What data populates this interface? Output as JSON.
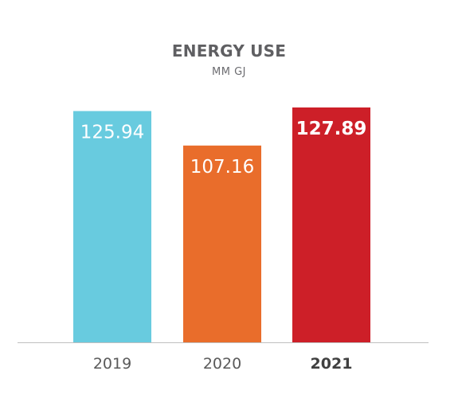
{
  "chart_data": {
    "type": "bar",
    "title": "ENERGY USE",
    "subtitle": "MM GJ",
    "xlabel": "",
    "ylabel": "",
    "ylim": [
      0,
      127.89
    ],
    "grid": false,
    "legend": "none",
    "categories": [
      "2019",
      "2020",
      "2021"
    ],
    "values": [
      125.94,
      107.16,
      127.89
    ],
    "value_labels": [
      "125.94",
      "107.16",
      "127.89"
    ],
    "bar_colors": [
      "#68cbdf",
      "#e96d2b",
      "#cd1f28"
    ],
    "highlighted_category": "2021"
  },
  "colors": {
    "title": "#5f5f62",
    "axis_line": "#bfbfbf",
    "tick_label": "#5a5a5a",
    "highlight_tick_label": "#404040",
    "value_label": "#ffffff"
  }
}
